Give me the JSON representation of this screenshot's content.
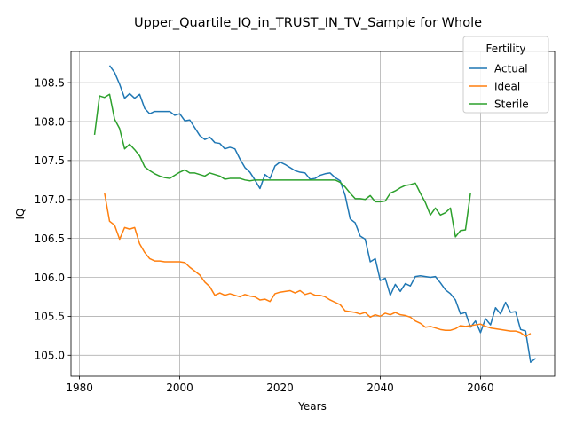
{
  "chart_data": {
    "type": "line",
    "title": "Upper_Quartile_IQ_in_TRUST_IN_TV_Sample for Whole",
    "xlabel": "Years",
    "ylabel": "IQ",
    "xlim": [
      1978.3,
      2074.8
    ],
    "ylim": [
      104.73,
      108.9
    ],
    "xticks": [
      1980,
      2000,
      2020,
      2040,
      2060
    ],
    "yticks": [
      105.0,
      105.5,
      106.0,
      106.5,
      107.0,
      107.5,
      108.0,
      108.5
    ],
    "grid": true,
    "legend": {
      "title": "Fertility",
      "position": "top-right"
    },
    "series": [
      {
        "name": "Actual",
        "color": "#1f77b4",
        "x_start": 1986,
        "values": [
          108.72,
          108.63,
          108.48,
          108.3,
          108.36,
          108.3,
          108.35,
          108.17,
          108.1,
          108.13,
          108.13,
          108.13,
          108.13,
          108.08,
          108.1,
          108.01,
          108.02,
          107.92,
          107.82,
          107.77,
          107.8,
          107.73,
          107.72,
          107.65,
          107.67,
          107.65,
          107.52,
          107.41,
          107.35,
          107.25,
          107.14,
          107.32,
          107.27,
          107.43,
          107.48,
          107.45,
          107.41,
          107.37,
          107.35,
          107.34,
          107.26,
          107.27,
          107.31,
          107.33,
          107.34,
          107.28,
          107.24,
          107.05,
          106.75,
          106.7,
          106.53,
          106.49,
          106.2,
          106.24,
          105.96,
          105.99,
          105.77,
          105.91,
          105.82,
          105.92,
          105.89,
          106.01,
          106.02,
          106.01,
          106.0,
          106.01,
          105.93,
          105.84,
          105.79,
          105.71,
          105.53,
          105.55,
          105.36,
          105.44,
          105.29,
          105.47,
          105.39,
          105.61,
          105.53,
          105.68,
          105.55,
          105.56,
          105.33,
          105.31,
          104.91,
          104.96
        ]
      },
      {
        "name": "Ideal",
        "color": "#ff7f0e",
        "x_start": 1985,
        "values": [
          107.08,
          106.72,
          106.67,
          106.49,
          106.64,
          106.62,
          106.64,
          106.43,
          106.32,
          106.24,
          106.21,
          106.21,
          106.2,
          106.2,
          106.2,
          106.2,
          106.19,
          106.13,
          106.08,
          106.03,
          105.94,
          105.88,
          105.77,
          105.8,
          105.77,
          105.79,
          105.77,
          105.75,
          105.78,
          105.76,
          105.75,
          105.71,
          105.72,
          105.69,
          105.79,
          105.81,
          105.82,
          105.83,
          105.8,
          105.83,
          105.78,
          105.8,
          105.77,
          105.77,
          105.75,
          105.71,
          105.68,
          105.65,
          105.57,
          105.56,
          105.55,
          105.53,
          105.55,
          105.49,
          105.52,
          105.5,
          105.54,
          105.52,
          105.55,
          105.52,
          105.51,
          105.49,
          105.44,
          105.41,
          105.36,
          105.37,
          105.35,
          105.33,
          105.32,
          105.32,
          105.34,
          105.38,
          105.37,
          105.38,
          105.39,
          105.4,
          105.37,
          105.35,
          105.34,
          105.33,
          105.32,
          105.31,
          105.31,
          105.29,
          105.24,
          105.28
        ]
      },
      {
        "name": "Sterile",
        "color": "#2ca02c",
        "x_start": 1983,
        "values": [
          107.83,
          108.33,
          108.31,
          108.35,
          108.03,
          107.91,
          107.65,
          107.71,
          107.64,
          107.56,
          107.42,
          107.37,
          107.33,
          107.3,
          107.28,
          107.27,
          107.31,
          107.35,
          107.38,
          107.34,
          107.34,
          107.32,
          107.3,
          107.34,
          107.32,
          107.3,
          107.26,
          107.27,
          107.27,
          107.27,
          107.25,
          107.24,
          107.25,
          107.25,
          107.25,
          107.25,
          107.25,
          107.25,
          107.25,
          107.25,
          107.25,
          107.25,
          107.25,
          107.25,
          107.25,
          107.25,
          107.25,
          107.25,
          107.25,
          107.22,
          107.16,
          107.08,
          107.01,
          107.01,
          107.0,
          107.05,
          106.97,
          106.97,
          106.98,
          107.08,
          107.11,
          107.15,
          107.18,
          107.19,
          107.21,
          107.08,
          106.96,
          106.8,
          106.89,
          106.8,
          106.83,
          106.89,
          106.52,
          106.6,
          106.61,
          107.08
        ]
      }
    ]
  }
}
